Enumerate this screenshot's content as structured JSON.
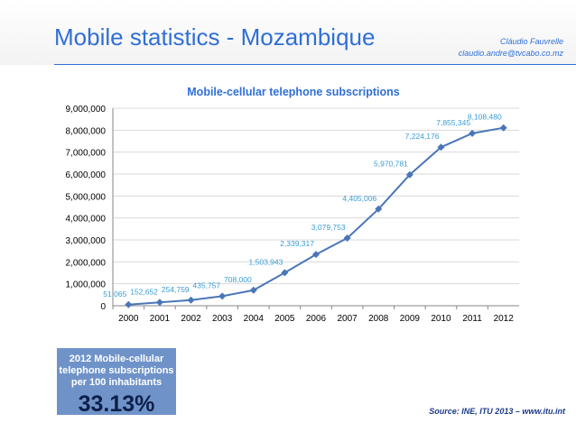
{
  "header": {
    "title": "Mobile statistics - Mozambique",
    "author_name": "Cláudio Fauvrelle",
    "author_email": "claudio.andre@tvcabo.co.mz"
  },
  "kpi": {
    "label": "2012 Mobile-cellular telephone subscriptions per 100 inhabitants",
    "value": "33.13%"
  },
  "source": "Source: INE, ITU 2013 – www.itu.int",
  "colors": {
    "accent": "#2f6fd6",
    "series": "#4a76b8",
    "labels": "#3a9cd6",
    "kpi_bg": "#6f93c8"
  },
  "chart_data": {
    "type": "line",
    "title": "Mobile-cellular telephone subscriptions",
    "x": [
      "2000",
      "2001",
      "2002",
      "2003",
      "2004",
      "2005",
      "2006",
      "2007",
      "2008",
      "2009",
      "2010",
      "2011",
      "2012"
    ],
    "values": [
      51065,
      152652,
      254759,
      435757,
      708000,
      1503943,
      2339317,
      3079753,
      4405006,
      5970781,
      7224176,
      7855345,
      8108480
    ],
    "data_labels": [
      "51,065",
      "152,652",
      "254,759",
      "435,757",
      "708,000",
      "1,503,943",
      "2,339,317",
      "3,079,753",
      "4,405,006",
      "5,970,781",
      "7,224,176",
      "7,855,345",
      "8,108,480"
    ],
    "ylim": [
      0,
      9000000
    ],
    "y_ticks": [
      "0",
      "1,000,000",
      "2,000,000",
      "3,000,000",
      "4,000,000",
      "5,000,000",
      "6,000,000",
      "7,000,000",
      "8,000,000",
      "9,000,000"
    ],
    "grid": true,
    "xlabel": "",
    "ylabel": ""
  }
}
